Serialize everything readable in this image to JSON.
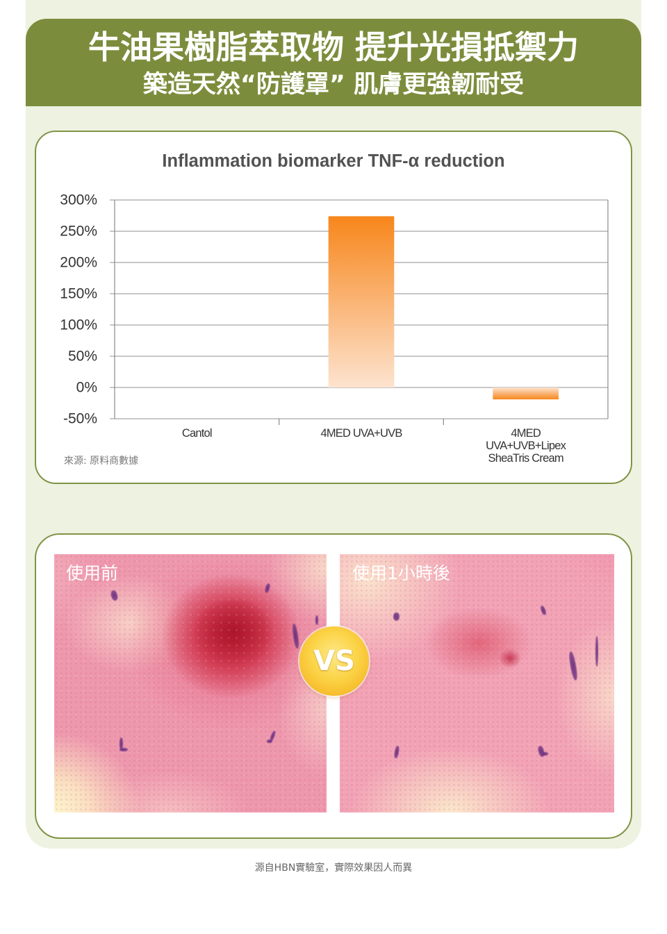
{
  "theme": {
    "header_bg": "#7b8d3c",
    "panel_bg": "#eef2e1",
    "card_border": "#7f9445"
  },
  "header": {
    "title": "牛油果樹脂萃取物 提升光損抵禦力",
    "subtitle": "築造天然“防護罩” 肌膚更強韌耐受"
  },
  "chart_data": {
    "type": "bar",
    "title": "Inflammation biomarker TNF-α reduction",
    "categories": [
      "Cantol",
      "4MED UVA+UVB",
      "4MED\nUVA+UVB+Lipex\nSheaTris Cream"
    ],
    "values": [
      0,
      274,
      -19
    ],
    "ylim": [
      -50,
      300
    ],
    "y_tick_labels": [
      "300%",
      "250%",
      "200%",
      "150%",
      "100%",
      "50%",
      "0%",
      "-50%"
    ],
    "grid": true,
    "bar_colors": [
      "#f7861b",
      "#fde3cf"
    ],
    "source": "來源: 原料商數據"
  },
  "comparison": {
    "before_label": "使用前",
    "after_label": "使用1小時後",
    "vs_label": "VS"
  },
  "footer": {
    "note": "源自HBN實驗室，實際效果因人而異"
  }
}
